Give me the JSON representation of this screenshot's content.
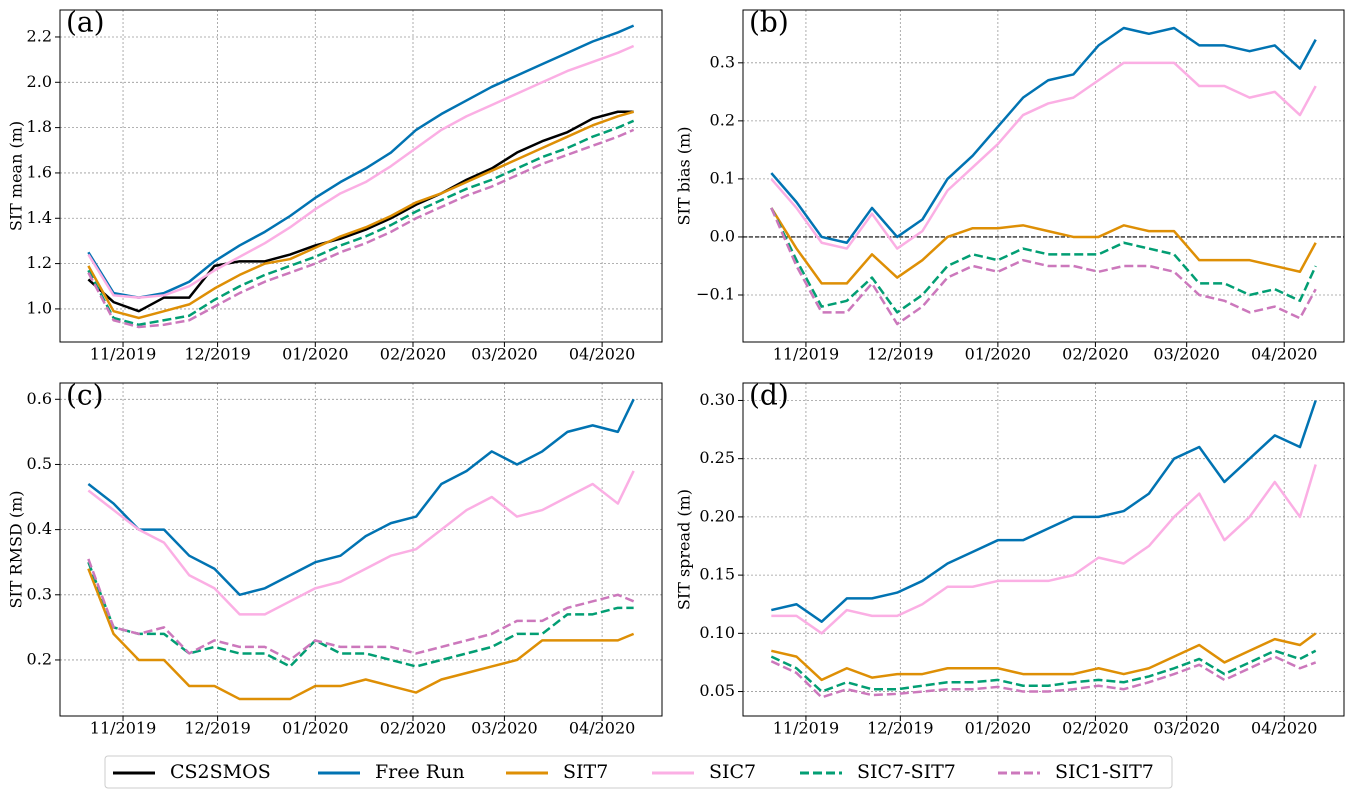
{
  "chart_data": [
    {
      "type": "line",
      "label": "(a)",
      "ylabel": "SIT mean (m)",
      "grid": true,
      "legend": "bottom",
      "x": [
        -11,
        -3,
        5,
        13,
        21,
        29,
        37,
        45,
        53,
        61,
        69,
        77,
        85,
        93,
        101,
        109,
        117,
        125,
        133,
        141,
        149,
        157,
        162
      ],
      "xlim": [
        -20,
        171
      ],
      "xticks": [
        {
          "value": 0,
          "label": "11/2019"
        },
        {
          "value": 30,
          "label": "12/2019"
        },
        {
          "value": 61,
          "label": "01/2020"
        },
        {
          "value": 92,
          "label": "02/2020"
        },
        {
          "value": 121,
          "label": "03/2020"
        },
        {
          "value": 152,
          "label": "04/2020"
        }
      ],
      "ylim": [
        0.854,
        2.319
      ],
      "yticks": [
        {
          "value": 1.0,
          "label": "1.0"
        },
        1.2,
        1.4,
        1.6,
        1.8,
        {
          "value": 2.0,
          "label": "2.0"
        },
        2.2
      ],
      "series": [
        {
          "name": "CS2SMOS",
          "color": "#000000",
          "dash": false,
          "values": [
            1.13,
            1.03,
            0.99,
            1.05,
            1.05,
            1.19,
            1.21,
            1.21,
            1.24,
            1.28,
            1.31,
            1.35,
            1.4,
            1.46,
            1.51,
            1.57,
            1.62,
            1.69,
            1.74,
            1.78,
            1.84,
            1.87,
            1.87
          ]
        },
        {
          "name": "Free Run",
          "color": "#0173b2",
          "dash": false,
          "values": [
            1.25,
            1.07,
            1.05,
            1.07,
            1.12,
            1.21,
            1.28,
            1.34,
            1.41,
            1.49,
            1.56,
            1.62,
            1.69,
            1.79,
            1.86,
            1.92,
            1.98,
            2.03,
            2.08,
            2.13,
            2.18,
            2.22,
            2.25
          ]
        },
        {
          "name": "SIT7",
          "color": "#de8f05",
          "dash": false,
          "values": [
            1.19,
            0.99,
            0.96,
            0.99,
            1.02,
            1.09,
            1.15,
            1.2,
            1.22,
            1.27,
            1.32,
            1.36,
            1.41,
            1.47,
            1.51,
            1.56,
            1.61,
            1.66,
            1.71,
            1.76,
            1.81,
            1.85,
            1.87
          ]
        },
        {
          "name": "SIC7",
          "color": "#fbafe4",
          "dash": false,
          "values": [
            1.24,
            1.06,
            1.05,
            1.06,
            1.1,
            1.17,
            1.23,
            1.29,
            1.36,
            1.44,
            1.51,
            1.56,
            1.63,
            1.71,
            1.79,
            1.85,
            1.9,
            1.95,
            2.0,
            2.05,
            2.09,
            2.13,
            2.16
          ]
        },
        {
          "name": "SIC7-SIT7",
          "color": "#029e73",
          "dash": true,
          "values": [
            1.17,
            0.96,
            0.93,
            0.95,
            0.97,
            1.04,
            1.1,
            1.15,
            1.19,
            1.23,
            1.28,
            1.32,
            1.37,
            1.43,
            1.48,
            1.53,
            1.57,
            1.62,
            1.67,
            1.71,
            1.76,
            1.8,
            1.83
          ]
        },
        {
          "name": "SIC1-SIT7",
          "color": "#cc78bc",
          "dash": true,
          "values": [
            1.16,
            0.95,
            0.92,
            0.93,
            0.95,
            1.01,
            1.07,
            1.12,
            1.16,
            1.2,
            1.25,
            1.29,
            1.34,
            1.4,
            1.45,
            1.5,
            1.54,
            1.59,
            1.64,
            1.68,
            1.72,
            1.76,
            1.79
          ]
        }
      ]
    },
    {
      "type": "line",
      "label": "(b)",
      "ylabel": "SIT bias (m)",
      "grid": true,
      "reference_line": 0,
      "x": [
        -11,
        -3,
        5,
        13,
        21,
        29,
        37,
        45,
        53,
        61,
        69,
        77,
        85,
        93,
        101,
        109,
        117,
        125,
        133,
        141,
        149,
        157,
        162
      ],
      "xlim": [
        -20,
        171
      ],
      "xticks": [
        {
          "value": 0,
          "label": "11/2019"
        },
        {
          "value": 30,
          "label": "12/2019"
        },
        {
          "value": 61,
          "label": "01/2020"
        },
        {
          "value": 92,
          "label": "02/2020"
        },
        {
          "value": 121,
          "label": "03/2020"
        },
        {
          "value": 152,
          "label": "04/2020"
        }
      ],
      "ylim": [
        -0.181,
        0.391
      ],
      "yticks": [
        {
          "value": -0.1,
          "label": "−0.1"
        },
        {
          "value": 0,
          "label": "0.0"
        },
        0.1,
        0.2,
        0.3
      ],
      "series": [
        {
          "name": "Free Run",
          "color": "#0173b2",
          "dash": false,
          "values": [
            0.11,
            0.06,
            0.0,
            -0.01,
            0.05,
            0.0,
            0.03,
            0.1,
            0.14,
            0.19,
            0.24,
            0.27,
            0.28,
            0.33,
            0.36,
            0.35,
            0.36,
            0.33,
            0.33,
            0.32,
            0.33,
            0.29,
            0.34
          ]
        },
        {
          "name": "SIT7",
          "color": "#de8f05",
          "dash": false,
          "values": [
            0.05,
            -0.02,
            -0.08,
            -0.08,
            -0.03,
            -0.07,
            -0.04,
            0.0,
            0.015,
            0.015,
            0.02,
            0.01,
            0.0,
            0.0,
            0.02,
            0.01,
            0.01,
            -0.04,
            -0.04,
            -0.04,
            -0.05,
            -0.06,
            -0.01
          ]
        },
        {
          "name": "SIC7",
          "color": "#fbafe4",
          "dash": false,
          "values": [
            0.1,
            0.05,
            -0.01,
            -0.02,
            0.04,
            -0.02,
            0.01,
            0.08,
            0.12,
            0.16,
            0.21,
            0.23,
            0.24,
            0.27,
            0.3,
            0.3,
            0.3,
            0.26,
            0.26,
            0.24,
            0.25,
            0.21,
            0.26
          ]
        },
        {
          "name": "SIC7-SIT7",
          "color": "#029e73",
          "dash": true,
          "values": [
            0.05,
            -0.04,
            -0.12,
            -0.11,
            -0.07,
            -0.13,
            -0.1,
            -0.05,
            -0.03,
            -0.04,
            -0.02,
            -0.03,
            -0.03,
            -0.03,
            -0.01,
            -0.02,
            -0.03,
            -0.08,
            -0.08,
            -0.1,
            -0.09,
            -0.11,
            -0.05
          ]
        },
        {
          "name": "SIC1-SIT7",
          "color": "#cc78bc",
          "dash": true,
          "values": [
            0.05,
            -0.05,
            -0.13,
            -0.13,
            -0.08,
            -0.15,
            -0.12,
            -0.07,
            -0.05,
            -0.06,
            -0.04,
            -0.05,
            -0.05,
            -0.06,
            -0.05,
            -0.05,
            -0.06,
            -0.1,
            -0.11,
            -0.13,
            -0.12,
            -0.14,
            -0.09
          ]
        }
      ]
    },
    {
      "type": "line",
      "label": "(c)",
      "ylabel": "SIT RMSD (m)",
      "grid": true,
      "x": [
        -11,
        -3,
        5,
        13,
        21,
        29,
        37,
        45,
        53,
        61,
        69,
        77,
        85,
        93,
        101,
        109,
        117,
        125,
        133,
        141,
        149,
        157,
        162
      ],
      "xlim": [
        -20,
        171
      ],
      "xticks": [
        {
          "value": 0,
          "label": "11/2019"
        },
        {
          "value": 30,
          "label": "12/2019"
        },
        {
          "value": 61,
          "label": "01/2020"
        },
        {
          "value": 92,
          "label": "02/2020"
        },
        {
          "value": 121,
          "label": "03/2020"
        },
        {
          "value": 152,
          "label": "04/2020"
        }
      ],
      "ylim": [
        0.114,
        0.625
      ],
      "yticks": [
        0.2,
        0.3,
        0.4,
        0.5,
        0.6
      ],
      "series": [
        {
          "name": "Free Run",
          "color": "#0173b2",
          "dash": false,
          "values": [
            0.47,
            0.44,
            0.4,
            0.4,
            0.36,
            0.34,
            0.3,
            0.31,
            0.33,
            0.35,
            0.36,
            0.39,
            0.41,
            0.42,
            0.47,
            0.49,
            0.52,
            0.5,
            0.52,
            0.55,
            0.56,
            0.55,
            0.6
          ]
        },
        {
          "name": "SIT7",
          "color": "#de8f05",
          "dash": false,
          "values": [
            0.34,
            0.24,
            0.2,
            0.2,
            0.16,
            0.16,
            0.14,
            0.14,
            0.14,
            0.16,
            0.16,
            0.17,
            0.16,
            0.15,
            0.17,
            0.18,
            0.19,
            0.2,
            0.23,
            0.23,
            0.23,
            0.23,
            0.24
          ]
        },
        {
          "name": "SIC7",
          "color": "#fbafe4",
          "dash": false,
          "values": [
            0.46,
            0.43,
            0.4,
            0.38,
            0.33,
            0.31,
            0.27,
            0.27,
            0.29,
            0.31,
            0.32,
            0.34,
            0.36,
            0.37,
            0.4,
            0.43,
            0.45,
            0.42,
            0.43,
            0.45,
            0.47,
            0.44,
            0.49
          ]
        },
        {
          "name": "SIC7-SIT7",
          "color": "#029e73",
          "dash": true,
          "values": [
            0.35,
            0.25,
            0.24,
            0.24,
            0.21,
            0.22,
            0.21,
            0.21,
            0.19,
            0.23,
            0.21,
            0.21,
            0.2,
            0.19,
            0.2,
            0.21,
            0.22,
            0.24,
            0.24,
            0.27,
            0.27,
            0.28,
            0.28
          ]
        },
        {
          "name": "SIC1-SIT7",
          "color": "#cc78bc",
          "dash": true,
          "values": [
            0.355,
            0.25,
            0.24,
            0.25,
            0.21,
            0.23,
            0.22,
            0.22,
            0.2,
            0.23,
            0.22,
            0.22,
            0.22,
            0.21,
            0.22,
            0.23,
            0.24,
            0.26,
            0.26,
            0.28,
            0.29,
            0.3,
            0.29
          ]
        }
      ]
    },
    {
      "type": "line",
      "label": "(d)",
      "ylabel": "SIT spread (m)",
      "grid": true,
      "x": [
        -11,
        -3,
        5,
        13,
        21,
        29,
        37,
        45,
        53,
        61,
        69,
        77,
        85,
        93,
        101,
        109,
        117,
        125,
        133,
        141,
        149,
        157,
        162
      ],
      "xlim": [
        -20,
        171
      ],
      "xticks": [
        {
          "value": 0,
          "label": "11/2019"
        },
        {
          "value": 30,
          "label": "12/2019"
        },
        {
          "value": 61,
          "label": "01/2020"
        },
        {
          "value": 92,
          "label": "02/2020"
        },
        {
          "value": 121,
          "label": "03/2020"
        },
        {
          "value": 152,
          "label": "04/2020"
        }
      ],
      "ylim": [
        0.029,
        0.315
      ],
      "yticks": [
        {
          "value": 0.05,
          "label": "0.05"
        },
        {
          "value": 0.1,
          "label": "0.10"
        },
        0.15,
        {
          "value": 0.2,
          "label": "0.20"
        },
        0.25,
        {
          "value": 0.3,
          "label": "0.30"
        }
      ],
      "series": [
        {
          "name": "Free Run",
          "color": "#0173b2",
          "dash": false,
          "values": [
            0.12,
            0.125,
            0.11,
            0.13,
            0.13,
            0.135,
            0.145,
            0.16,
            0.17,
            0.18,
            0.18,
            0.19,
            0.2,
            0.2,
            0.205,
            0.22,
            0.25,
            0.26,
            0.23,
            0.25,
            0.27,
            0.26,
            0.3
          ]
        },
        {
          "name": "SIT7",
          "color": "#de8f05",
          "dash": false,
          "values": [
            0.085,
            0.08,
            0.06,
            0.07,
            0.062,
            0.065,
            0.065,
            0.07,
            0.07,
            0.07,
            0.065,
            0.065,
            0.065,
            0.07,
            0.065,
            0.07,
            0.08,
            0.09,
            0.075,
            0.085,
            0.095,
            0.09,
            0.1
          ]
        },
        {
          "name": "SIC7",
          "color": "#fbafe4",
          "dash": false,
          "values": [
            0.115,
            0.115,
            0.1,
            0.12,
            0.115,
            0.115,
            0.125,
            0.14,
            0.14,
            0.145,
            0.145,
            0.145,
            0.15,
            0.165,
            0.16,
            0.175,
            0.2,
            0.22,
            0.18,
            0.2,
            0.23,
            0.2,
            0.245
          ]
        },
        {
          "name": "SIC7-SIT7",
          "color": "#029e73",
          "dash": true,
          "values": [
            0.08,
            0.07,
            0.05,
            0.058,
            0.052,
            0.052,
            0.055,
            0.058,
            0.058,
            0.06,
            0.055,
            0.055,
            0.058,
            0.06,
            0.058,
            0.063,
            0.07,
            0.078,
            0.065,
            0.075,
            0.085,
            0.078,
            0.085
          ]
        },
        {
          "name": "SIC1-SIT7",
          "color": "#cc78bc",
          "dash": true,
          "values": [
            0.076,
            0.066,
            0.045,
            0.052,
            0.047,
            0.048,
            0.05,
            0.052,
            0.052,
            0.054,
            0.05,
            0.05,
            0.052,
            0.055,
            0.052,
            0.058,
            0.065,
            0.073,
            0.06,
            0.07,
            0.08,
            0.07,
            0.075
          ]
        }
      ]
    }
  ]
}
